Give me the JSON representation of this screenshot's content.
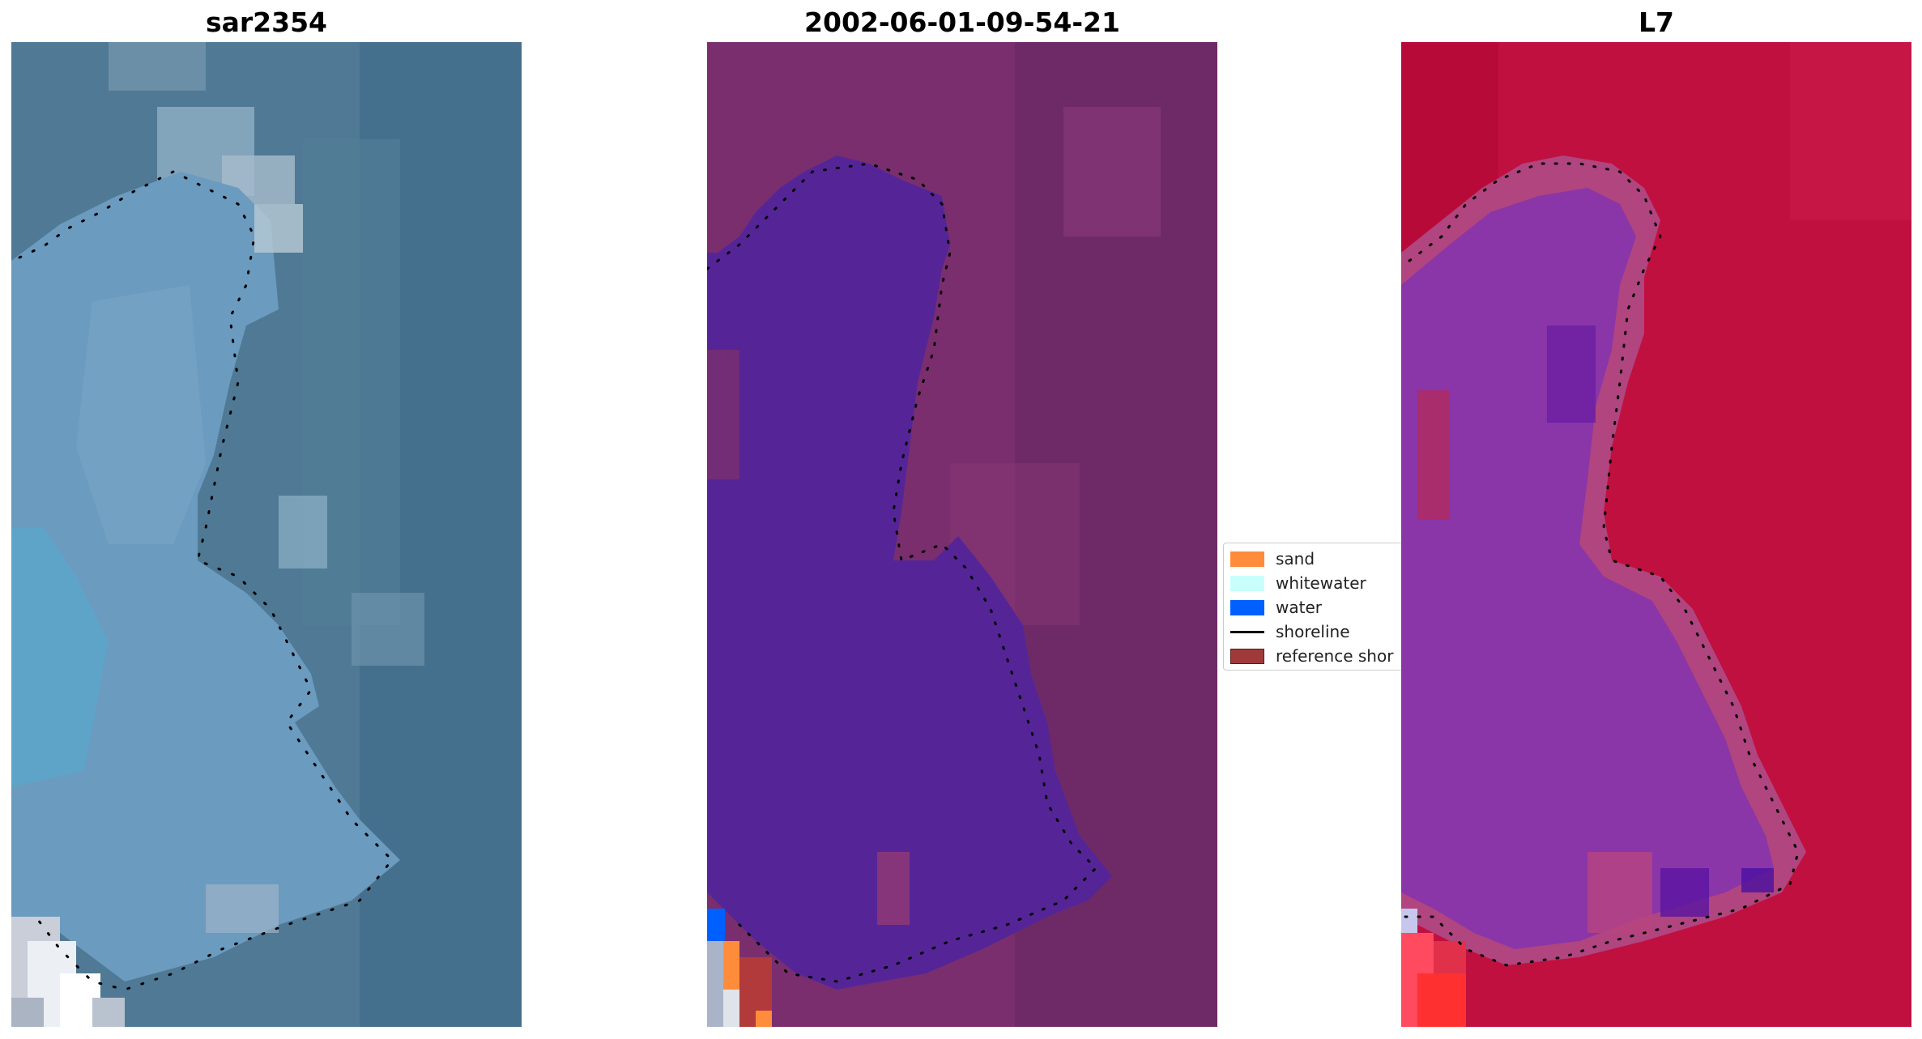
{
  "panels": {
    "left": {
      "title": "sar2354",
      "tone": "natural-color satellite tile (blue/teal water, grey-white sand patch lower-left)"
    },
    "center": {
      "title": "2002-06-01-09-54-21",
      "tone": "classified overlay (purple water mask over magenta background)"
    },
    "right": {
      "title": "L7",
      "tone": "false-color index (crimson background, violet water body)"
    }
  },
  "legend": {
    "items": [
      {
        "label": "sand",
        "kind": "swatch",
        "color": "#ff8c3a"
      },
      {
        "label": "whitewater",
        "kind": "swatch",
        "color": "#c8fffb"
      },
      {
        "label": "water",
        "kind": "swatch",
        "color": "#0060ff"
      },
      {
        "label": "shoreline",
        "kind": "line",
        "color": "#000000"
      },
      {
        "label": "reference shor",
        "kind": "swatch",
        "color": "#a03a3a",
        "border": "#5a1a1a"
      }
    ]
  },
  "colors": {
    "left_background": "#4d7a96",
    "left_water": "#6a9cc2",
    "center_background": "#7a2e6e",
    "center_water": "#552598",
    "right_background": "#c0103f",
    "right_water": "#8a35a8",
    "shoreline_dots": "#000000"
  }
}
